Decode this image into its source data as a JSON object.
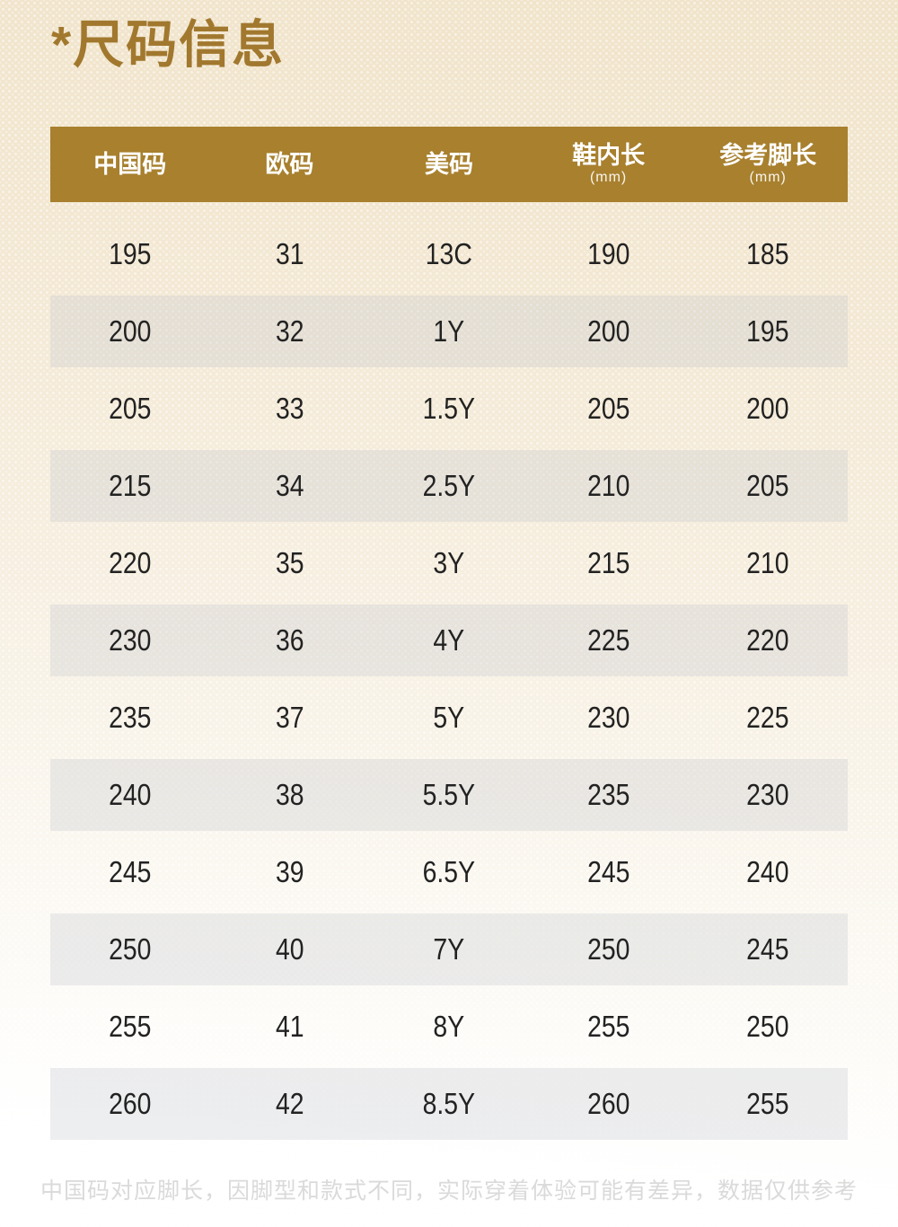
{
  "page": {
    "title": "*尺码信息",
    "footnote": "中国码对应脚长，因脚型和款式不同，实际穿着体验可能有差异，数据仅供参考"
  },
  "colors": {
    "accent_gold_header": "#a8802e",
    "title_gold": "#a1782e",
    "header_text": "#ffffff",
    "cell_text": "#222222",
    "row_stripe": "#e7e4db",
    "footnote_text": "#dadada",
    "background_top": "#f0e3c9",
    "background_bottom": "#ffffff"
  },
  "size_table": {
    "columns": [
      {
        "key": "cn-size",
        "label": "中国码",
        "sub": ""
      },
      {
        "key": "eu-size",
        "label": "欧码",
        "sub": ""
      },
      {
        "key": "us-size",
        "label": "美码",
        "sub": ""
      },
      {
        "key": "inner-length",
        "label": "鞋内长",
        "sub": "(mm)"
      },
      {
        "key": "foot-length",
        "label": "参考脚长",
        "sub": "(mm)"
      }
    ],
    "rows": [
      [
        "195",
        "31",
        "13C",
        "190",
        "185"
      ],
      [
        "200",
        "32",
        "1Y",
        "200",
        "195"
      ],
      [
        "205",
        "33",
        "1.5Y",
        "205",
        "200"
      ],
      [
        "215",
        "34",
        "2.5Y",
        "210",
        "205"
      ],
      [
        "220",
        "35",
        "3Y",
        "215",
        "210"
      ],
      [
        "230",
        "36",
        "4Y",
        "225",
        "220"
      ],
      [
        "235",
        "37",
        "5Y",
        "230",
        "225"
      ],
      [
        "240",
        "38",
        "5.5Y",
        "235",
        "230"
      ],
      [
        "245",
        "39",
        "6.5Y",
        "245",
        "240"
      ],
      [
        "250",
        "40",
        "7Y",
        "250",
        "245"
      ],
      [
        "255",
        "41",
        "8Y",
        "255",
        "250"
      ],
      [
        "260",
        "42",
        "8.5Y",
        "260",
        "255"
      ]
    ]
  }
}
